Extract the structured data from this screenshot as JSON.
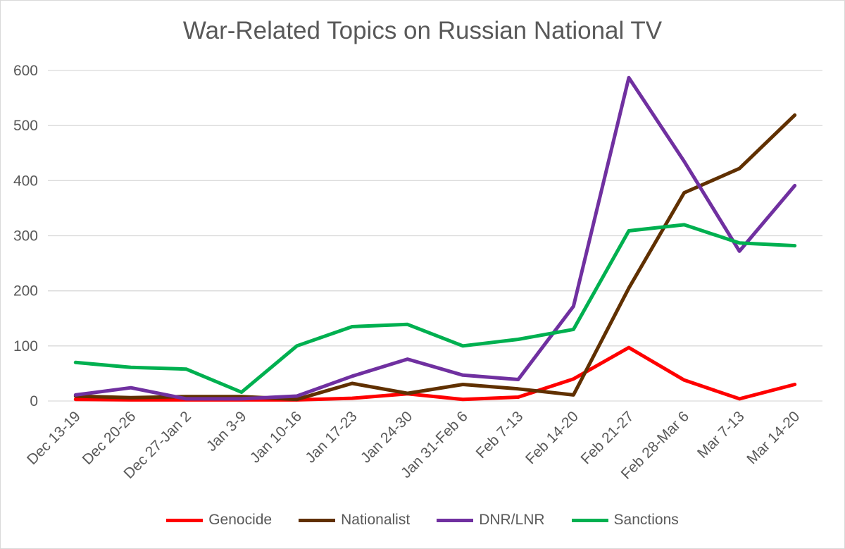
{
  "chart_data": {
    "type": "line",
    "title": "War-Related Topics on Russian National TV",
    "categories": [
      "Dec 13-19",
      "Dec 20-26",
      "Dec 27-Jan 2",
      "Jan 3-9",
      "Jan 10-16",
      "Jan 17-23",
      "Jan 24-30",
      "Jan 31-Feb 6",
      "Feb 7-13",
      "Feb 14-20",
      "Feb 21-27",
      "Feb 28-Mar 6",
      "Mar 7-13",
      "Mar 14-20"
    ],
    "ylim": [
      0,
      600
    ],
    "yticks": [
      "0",
      "100",
      "200",
      "300",
      "400",
      "500",
      "600"
    ],
    "grid": "horizontal",
    "legend_position": "bottom",
    "series": [
      {
        "name": "Genocide",
        "color": "#ff0000",
        "values": [
          3,
          2,
          2,
          2,
          2,
          5,
          13,
          3,
          7,
          40,
          97,
          38,
          4,
          30
        ]
      },
      {
        "name": "Nationalist",
        "color": "#603000",
        "values": [
          9,
          6,
          8,
          8,
          3,
          32,
          14,
          30,
          22,
          11,
          205,
          378,
          422,
          519
        ]
      },
      {
        "name": "DNR/LNR",
        "color": "#7030a0",
        "values": [
          11,
          24,
          4,
          4,
          9,
          45,
          76,
          47,
          39,
          172,
          587,
          435,
          272,
          391
        ]
      },
      {
        "name": "Sanctions",
        "color": "#00b050",
        "values": [
          70,
          61,
          58,
          16,
          100,
          135,
          139,
          100,
          112,
          130,
          309,
          320,
          287,
          282
        ]
      }
    ]
  }
}
